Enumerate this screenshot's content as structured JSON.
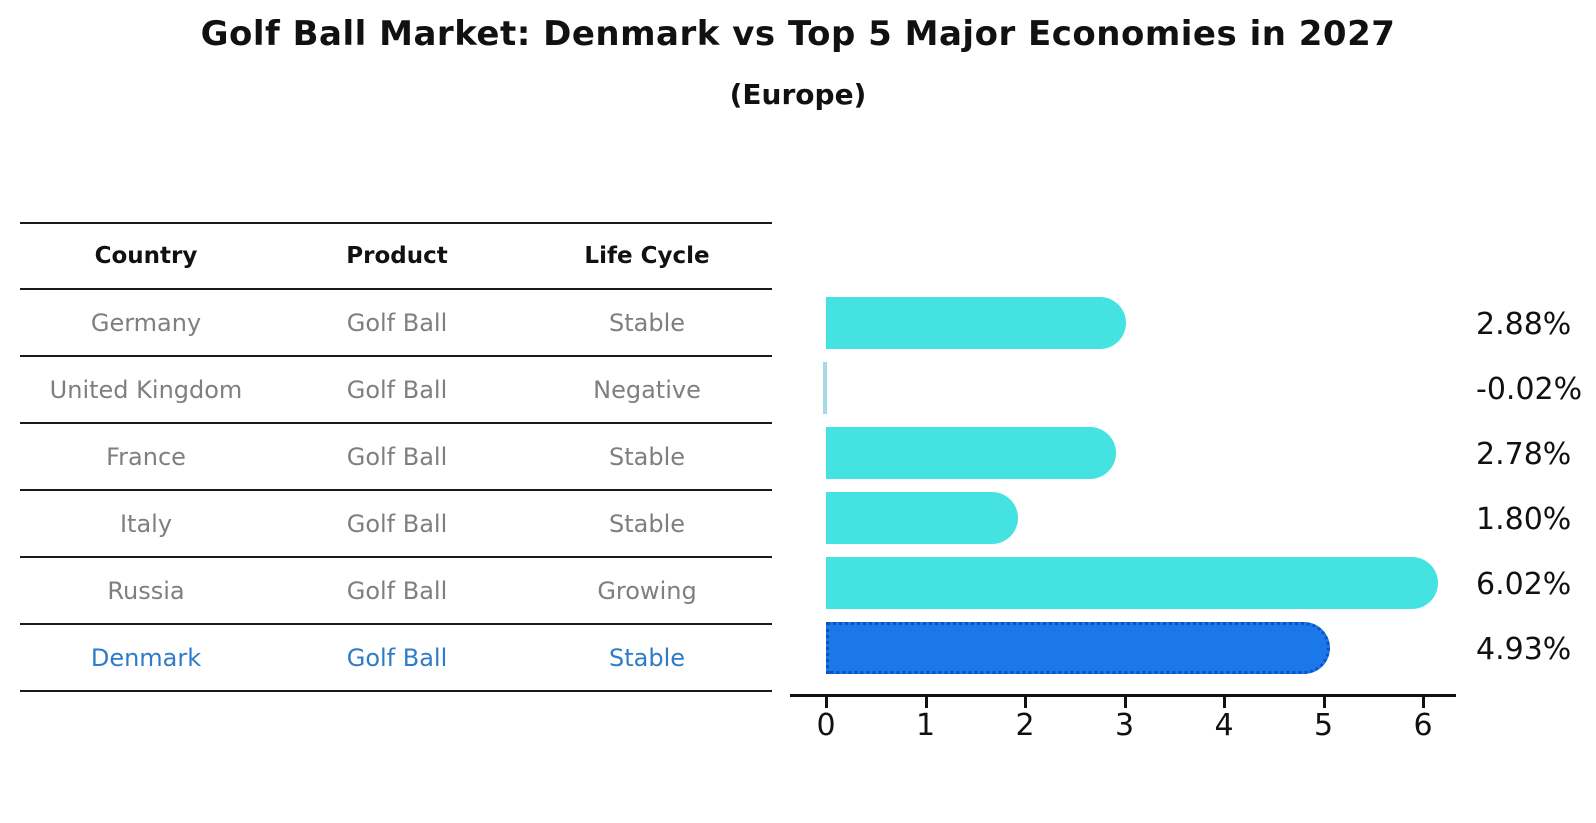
{
  "title": "Golf Ball Market: Denmark vs Top 5 Major Economies in 2027",
  "subtitle": "(Europe)",
  "colors": {
    "bar_default": "#45e2e2",
    "bar_highlight": "#1b78e8",
    "bar_highlight_border": "#0d52c4",
    "bar_negative_sliver": "#a7d9e4",
    "table_row_text": "#7f7f7f",
    "table_highlight_text": "#2e7cc9",
    "header_text": "#111111"
  },
  "table": {
    "headers": [
      "Country",
      "Product",
      "Life Cycle"
    ],
    "rows": [
      {
        "country": "Germany",
        "product": "Golf Ball",
        "life_cycle": "Stable",
        "highlight": false
      },
      {
        "country": "United Kingdom",
        "product": "Golf Ball",
        "life_cycle": "Negative",
        "highlight": false
      },
      {
        "country": "France",
        "product": "Golf Ball",
        "life_cycle": "Stable",
        "highlight": false
      },
      {
        "country": "Italy",
        "product": "Golf Ball",
        "life_cycle": "Stable",
        "highlight": false
      },
      {
        "country": "Russia",
        "product": "Golf Ball",
        "life_cycle": "Growing",
        "highlight": false
      },
      {
        "country": "Denmark",
        "product": "Golf Ball",
        "life_cycle": "Stable",
        "highlight": true
      }
    ]
  },
  "chart_data": {
    "type": "bar",
    "orientation": "horizontal",
    "title": "Golf Ball Market: Denmark vs Top 5 Major Economies in 2027",
    "subtitle": "(Europe)",
    "categories": [
      "Germany",
      "United Kingdom",
      "France",
      "Italy",
      "Russia",
      "Denmark"
    ],
    "values": [
      2.88,
      -0.02,
      2.78,
      1.8,
      6.02,
      4.93
    ],
    "value_labels": [
      "2.88%",
      "-0.02%",
      "2.78%",
      "1.80%",
      "6.02%",
      "4.93%"
    ],
    "highlight_category": "Denmark",
    "x_ticks": [
      "0",
      "1",
      "2",
      "3",
      "4",
      "5",
      "6"
    ],
    "xlim": [
      0,
      6.35
    ],
    "xlabel": "",
    "ylabel": "",
    "grid": false,
    "legend": false
  }
}
